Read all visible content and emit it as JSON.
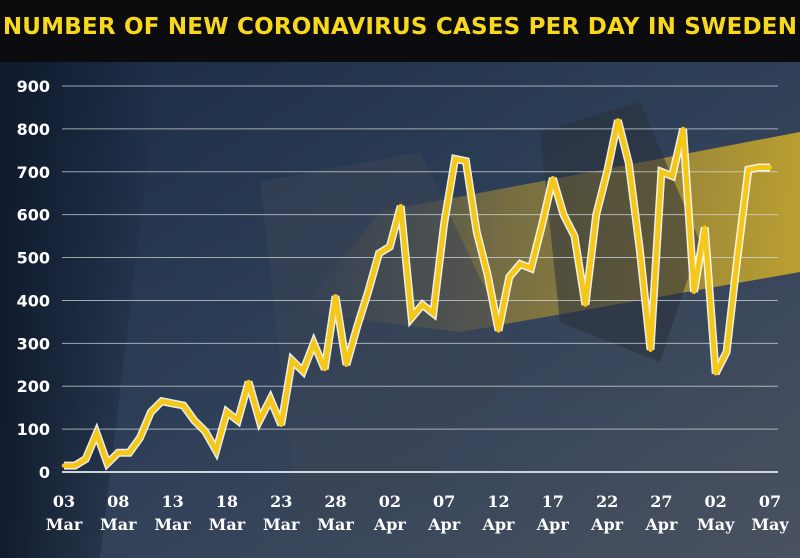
{
  "title": "NUMBER OF NEW CORONAVIRUS CASES PER DAY IN SWEDEN",
  "colors": {
    "line": "#f5c817",
    "line_outline": "#ffffff",
    "title": "#f7d81c",
    "title_background": "#0c0c0e",
    "text": "#ffffff",
    "gridline": "#d9dde2",
    "background": "#1d2a3a"
  },
  "chart_data": {
    "type": "line",
    "title": "NUMBER OF NEW CORONAVIRUS CASES PER DAY IN SWEDEN",
    "xlabel": "",
    "ylabel": "",
    "ylim": [
      0,
      900
    ],
    "yticks": [
      0,
      100,
      200,
      300,
      400,
      500,
      600,
      700,
      800,
      900
    ],
    "grid": true,
    "legend": "none",
    "x_tick_labels": [
      {
        "date": "2020-03-03",
        "day": "03",
        "month": "Mar"
      },
      {
        "date": "2020-03-08",
        "day": "08",
        "month": "Mar"
      },
      {
        "date": "2020-03-13",
        "day": "13",
        "month": "Mar"
      },
      {
        "date": "2020-03-18",
        "day": "18",
        "month": "Mar"
      },
      {
        "date": "2020-03-23",
        "day": "23",
        "month": "Mar"
      },
      {
        "date": "2020-03-28",
        "day": "28",
        "month": "Mar"
      },
      {
        "date": "2020-04-02",
        "day": "02",
        "month": "Apr"
      },
      {
        "date": "2020-04-07",
        "day": "07",
        "month": "Apr"
      },
      {
        "date": "2020-04-12",
        "day": "12",
        "month": "Apr"
      },
      {
        "date": "2020-04-17",
        "day": "17",
        "month": "Apr"
      },
      {
        "date": "2020-04-22",
        "day": "22",
        "month": "Apr"
      },
      {
        "date": "2020-04-27",
        "day": "27",
        "month": "Apr"
      },
      {
        "date": "2020-05-02",
        "day": "02",
        "month": "May"
      },
      {
        "date": "2020-05-07",
        "day": "07",
        "month": "May"
      }
    ],
    "x": [
      "2020-03-03",
      "2020-03-04",
      "2020-03-05",
      "2020-03-06",
      "2020-03-07",
      "2020-03-08",
      "2020-03-09",
      "2020-03-10",
      "2020-03-11",
      "2020-03-12",
      "2020-03-13",
      "2020-03-14",
      "2020-03-15",
      "2020-03-16",
      "2020-03-17",
      "2020-03-18",
      "2020-03-19",
      "2020-03-20",
      "2020-03-21",
      "2020-03-22",
      "2020-03-23",
      "2020-03-24",
      "2020-03-25",
      "2020-03-26",
      "2020-03-27",
      "2020-03-28",
      "2020-03-29",
      "2020-03-30",
      "2020-03-31",
      "2020-04-01",
      "2020-04-02",
      "2020-04-03",
      "2020-04-04",
      "2020-04-05",
      "2020-04-06",
      "2020-04-07",
      "2020-04-08",
      "2020-04-09",
      "2020-04-10",
      "2020-04-11",
      "2020-04-12",
      "2020-04-13",
      "2020-04-14",
      "2020-04-15",
      "2020-04-16",
      "2020-04-17",
      "2020-04-18",
      "2020-04-19",
      "2020-04-20",
      "2020-04-21",
      "2020-04-22",
      "2020-04-23",
      "2020-04-24",
      "2020-04-25",
      "2020-04-26",
      "2020-04-27",
      "2020-04-28",
      "2020-04-29",
      "2020-04-30",
      "2020-05-01",
      "2020-05-02",
      "2020-05-03",
      "2020-05-04",
      "2020-05-05",
      "2020-05-06",
      "2020-05-07"
    ],
    "series": [
      {
        "values": [
          15,
          15,
          30,
          90,
          20,
          45,
          45,
          80,
          140,
          165,
          160,
          155,
          120,
          95,
          50,
          140,
          120,
          210,
          120,
          170,
          110,
          260,
          235,
          300,
          240,
          410,
          250,
          340,
          420,
          510,
          525,
          620,
          360,
          390,
          370,
          580,
          730,
          725,
          560,
          460,
          330,
          455,
          485,
          475,
          575,
          685,
          600,
          550,
          390,
          600,
          700,
          820,
          720,
          520,
          285,
          700,
          690,
          800,
          420,
          570,
          230,
          280,
          500,
          705,
          710,
          710
        ]
      }
    ]
  }
}
